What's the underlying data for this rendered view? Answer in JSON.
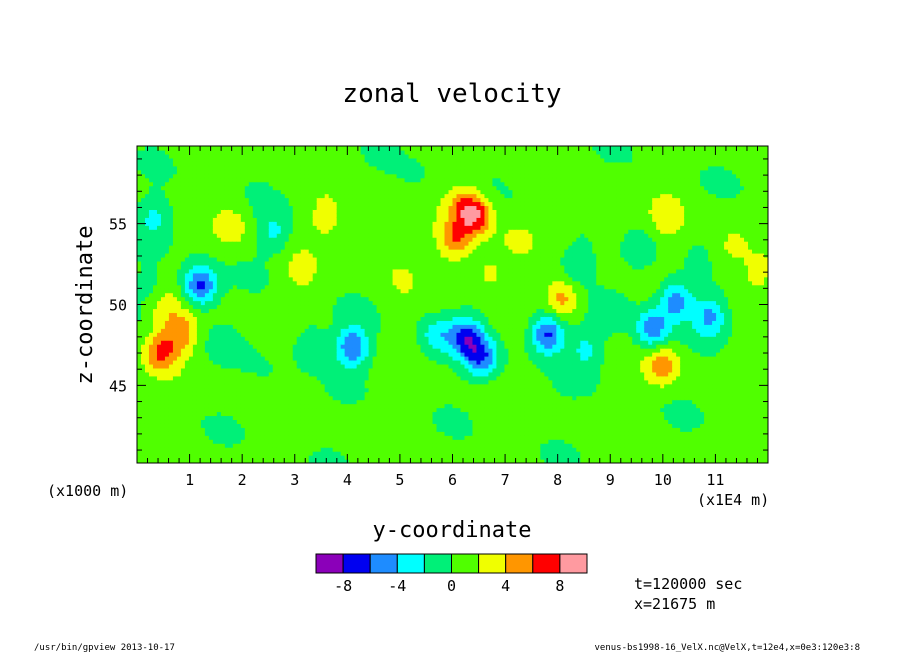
{
  "chart_data": {
    "type": "heatmap",
    "title": "zonal velocity",
    "xlabel": "y-coordinate",
    "ylabel": "z-coordinate",
    "x_scale_note": "(x1E4 m)",
    "y_scale_note": "(x1000 m)",
    "xlim": [
      0,
      12
    ],
    "ylim": [
      40.2,
      59.8
    ],
    "x_ticks": [
      "1",
      "2",
      "3",
      "4",
      "5",
      "6",
      "7",
      "8",
      "9",
      "10",
      "11"
    ],
    "y_ticks": [
      "45",
      "50",
      "55"
    ],
    "colorbar": {
      "levels": [
        -10,
        -8,
        -6,
        -4,
        -2,
        0,
        2,
        4,
        6,
        8,
        10
      ],
      "tick_labels": [
        "-8",
        "-4",
        "0",
        "4",
        "8"
      ],
      "colors": [
        "#8b00b9",
        "#0000f0",
        "#1e8cff",
        "#00ffff",
        "#00f078",
        "#50ff00",
        "#f0ff00",
        "#ff9600",
        "#ff0000",
        "#ff9aa0"
      ]
    },
    "background_value": 0.6,
    "features": [
      {
        "y": 0.45,
        "z": 47.1,
        "v": 5.5
      },
      {
        "y": 0.85,
        "z": 48.3,
        "v": 4.5
      },
      {
        "y": 1.2,
        "z": 51.2,
        "v": -7.5
      },
      {
        "y": 0.35,
        "z": 55.4,
        "v": -3.0
      },
      {
        "y": 0.25,
        "z": 51.0,
        "v": -1.5
      },
      {
        "y": 1.55,
        "z": 47.8,
        "v": -1.0
      },
      {
        "y": 0.5,
        "z": 49.8,
        "v": 2.5
      },
      {
        "y": 1.8,
        "z": 54.8,
        "v": 2.5
      },
      {
        "y": 2.6,
        "z": 54.5,
        "v": -3.0
      },
      {
        "y": 3.1,
        "z": 52.0,
        "v": 2.0
      },
      {
        "y": 3.3,
        "z": 47.5,
        "v": -3.0
      },
      {
        "y": 3.6,
        "z": 55.5,
        "v": 2.5
      },
      {
        "y": 4.1,
        "z": 47.4,
        "v": -6.5
      },
      {
        "y": 4.45,
        "z": 53.3,
        "v": 1.5
      },
      {
        "y": 5.0,
        "z": 51.7,
        "v": 1.2
      },
      {
        "y": 5.7,
        "z": 48.1,
        "v": -3.5
      },
      {
        "y": 6.25,
        "z": 48.0,
        "v": -6.5
      },
      {
        "y": 6.55,
        "z": 46.8,
        "v": -6.0
      },
      {
        "y": 6.2,
        "z": 56.2,
        "v": 4.0
      },
      {
        "y": 6.45,
        "z": 55.5,
        "v": 6.5
      },
      {
        "y": 6.05,
        "z": 54.0,
        "v": 5.0
      },
      {
        "y": 6.7,
        "z": 52.0,
        "v": 2.5
      },
      {
        "y": 7.2,
        "z": 54.0,
        "v": 1.5
      },
      {
        "y": 7.8,
        "z": 48.2,
        "v": -7.5
      },
      {
        "y": 8.1,
        "z": 50.4,
        "v": 4.5
      },
      {
        "y": 8.35,
        "z": 52.5,
        "v": -2.5
      },
      {
        "y": 8.55,
        "z": 47.3,
        "v": -3.0
      },
      {
        "y": 9.0,
        "z": 55.0,
        "v": 2.0
      },
      {
        "y": 9.1,
        "z": 49.5,
        "v": -2.0
      },
      {
        "y": 9.55,
        "z": 53.3,
        "v": -2.5
      },
      {
        "y": 9.8,
        "z": 48.5,
        "v": -6.0
      },
      {
        "y": 10.25,
        "z": 50.3,
        "v": -5.5
      },
      {
        "y": 10.0,
        "z": 46.3,
        "v": 4.5
      },
      {
        "y": 10.1,
        "z": 55.4,
        "v": 2.5
      },
      {
        "y": 10.9,
        "z": 49.3,
        "v": -5.0
      },
      {
        "y": 11.3,
        "z": 53.5,
        "v": 2.0
      },
      {
        "y": 11.8,
        "z": 52.0,
        "v": 2.0
      },
      {
        "y": 7.3,
        "z": 43.6,
        "v": -1.0
      },
      {
        "y": 2.5,
        "z": 45.5,
        "v": -0.5
      },
      {
        "y": 8.2,
        "z": 45.5,
        "v": -0.3
      },
      {
        "y": 11.2,
        "z": 45.0,
        "v": -0.8
      },
      {
        "y": 5.3,
        "z": 57.8,
        "v": -0.7
      }
    ]
  },
  "annotations": {
    "time_label": "t=120000 sec",
    "x_label": "x=21675 m"
  },
  "footer": {
    "left": "/usr/bin/gpview  2013-10-17",
    "right": "venus-bs1998-16_VelX.nc@VelX,t=12e4,x=0e3:120e3:8"
  }
}
